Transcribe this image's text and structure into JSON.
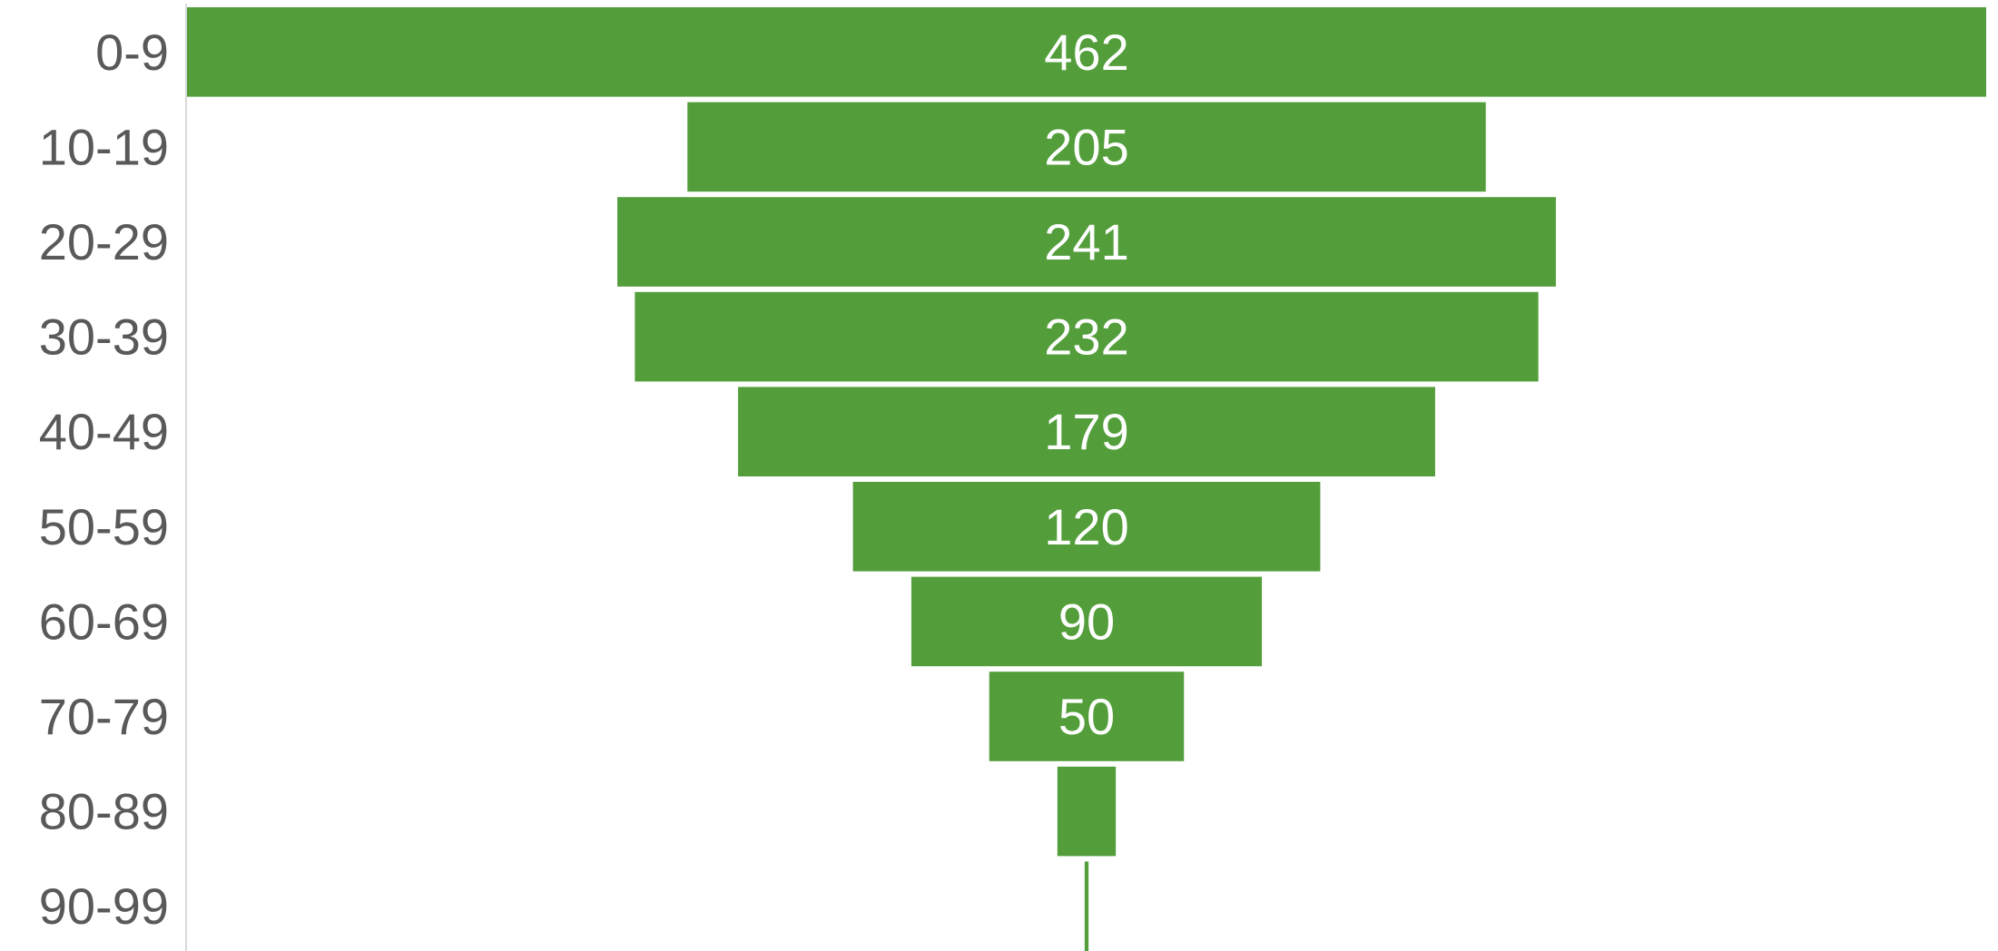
{
  "chart_data": {
    "type": "bar",
    "subtype": "funnel",
    "orientation": "horizontal",
    "categories": [
      "0-9",
      "10-19",
      "20-29",
      "30-39",
      "40-49",
      "50-59",
      "60-69",
      "70-79",
      "80-89",
      "90-99"
    ],
    "values": [
      462,
      205,
      241,
      232,
      179,
      120,
      90,
      50,
      15,
      1
    ],
    "data_labels": [
      "462",
      "205",
      "241",
      "232",
      "179",
      "120",
      "90",
      "50",
      "",
      ""
    ],
    "colors": {
      "bar": "#539E3B",
      "label": "#FFFFFF",
      "axis_text": "#595959",
      "axis_line": "#D9D9D9"
    },
    "grid": false,
    "legend": "none"
  }
}
